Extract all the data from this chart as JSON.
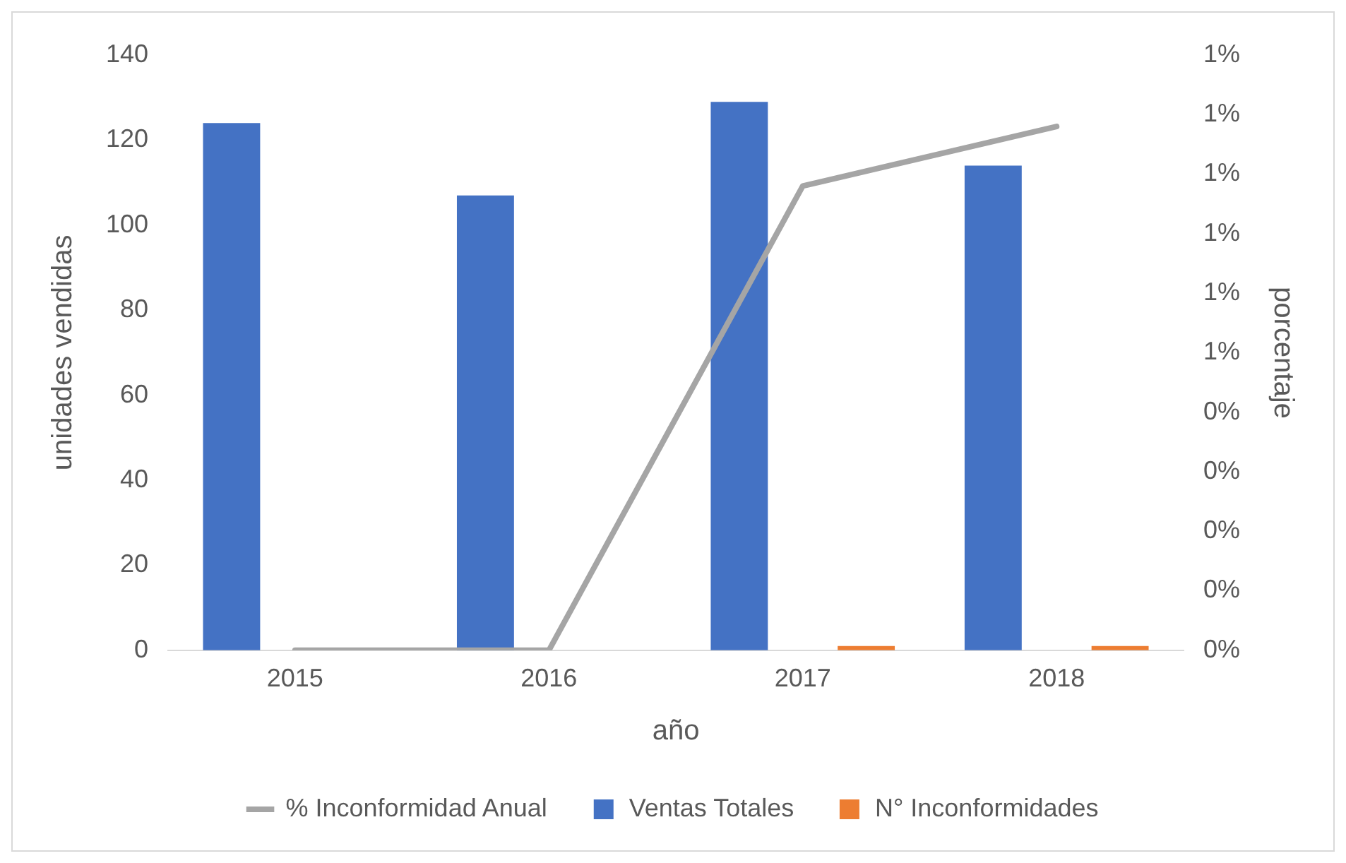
{
  "chart_data": {
    "type": "bar",
    "xlabel": "año",
    "ylabel": "unidades vendidas",
    "y2label": "porcentaje",
    "categories": [
      "2015",
      "2016",
      "2017",
      "2018"
    ],
    "series": [
      {
        "name": "Ventas Totales",
        "color": "#4472c4",
        "values": [
          124,
          107,
          129,
          114
        ]
      },
      {
        "name": "N° Inconformidades",
        "color": "#ed7d31",
        "values": [
          0,
          0,
          1,
          1
        ]
      },
      {
        "name": "% Inconformidad Anual",
        "color": "#a5a5a5",
        "type": "line",
        "axis": "y2",
        "marker": "none",
        "values": [
          0,
          0,
          0.78,
          0.88
        ]
      }
    ],
    "ylim": [
      0,
      140
    ],
    "yticks": [
      0,
      20,
      40,
      60,
      80,
      100,
      120,
      140
    ],
    "y2lim": [
      0,
      1
    ],
    "y2ticks": [
      {
        "value": 0,
        "label": "0%"
      },
      {
        "value": 0.1,
        "label": "0%"
      },
      {
        "value": 0.2,
        "label": "0%"
      },
      {
        "value": 0.3,
        "label": "0%"
      },
      {
        "value": 0.4,
        "label": "0%"
      },
      {
        "value": 0.5,
        "label": "1%"
      },
      {
        "value": 0.6,
        "label": "1%"
      },
      {
        "value": 0.7,
        "label": "1%"
      },
      {
        "value": 0.8,
        "label": "1%"
      },
      {
        "value": 0.9,
        "label": "1%"
      },
      {
        "value": 1,
        "label": "1%"
      }
    ],
    "grid": false,
    "legend": "bottom"
  }
}
